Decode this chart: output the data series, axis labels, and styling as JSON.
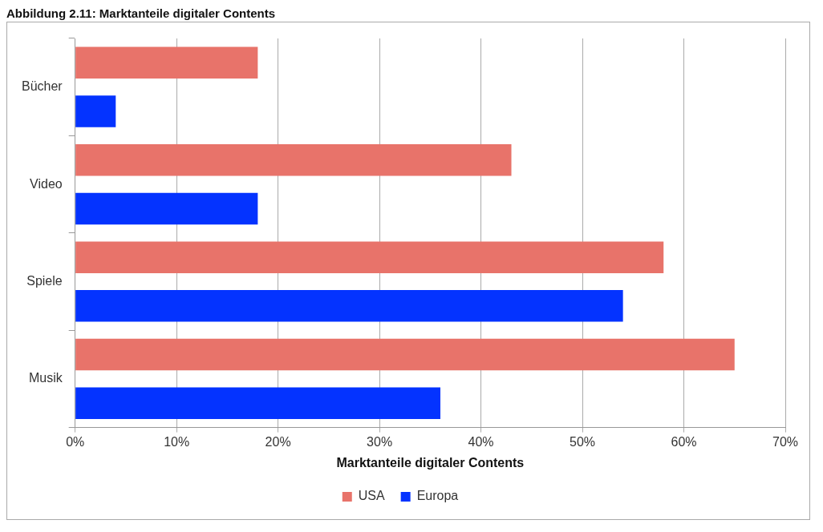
{
  "chart_data": {
    "type": "bar",
    "orientation": "horizontal",
    "title": "Abbildung 2.11: Marktanteile digitaler Contents",
    "xlabel": "Marktanteile digitaler Contents",
    "categories": [
      "Bücher",
      "Video",
      "Spiele",
      "Musik"
    ],
    "series": [
      {
        "name": "USA",
        "color": "#e8736a",
        "values": [
          18,
          43,
          58,
          65
        ]
      },
      {
        "name": "Europa",
        "color": "#0433ff",
        "values": [
          4,
          18,
          54,
          36
        ]
      }
    ],
    "xlim": [
      0,
      70
    ],
    "xticks": [
      {
        "value": 0,
        "label": "0%"
      },
      {
        "value": 10,
        "label": "10%"
      },
      {
        "value": 20,
        "label": "20%"
      },
      {
        "value": 30,
        "label": "30%"
      },
      {
        "value": 40,
        "label": "40%"
      },
      {
        "value": 50,
        "label": "50%"
      },
      {
        "value": 60,
        "label": "60%"
      },
      {
        "value": 70,
        "label": "70%"
      }
    ],
    "grid": "x",
    "legend": "bottom"
  }
}
